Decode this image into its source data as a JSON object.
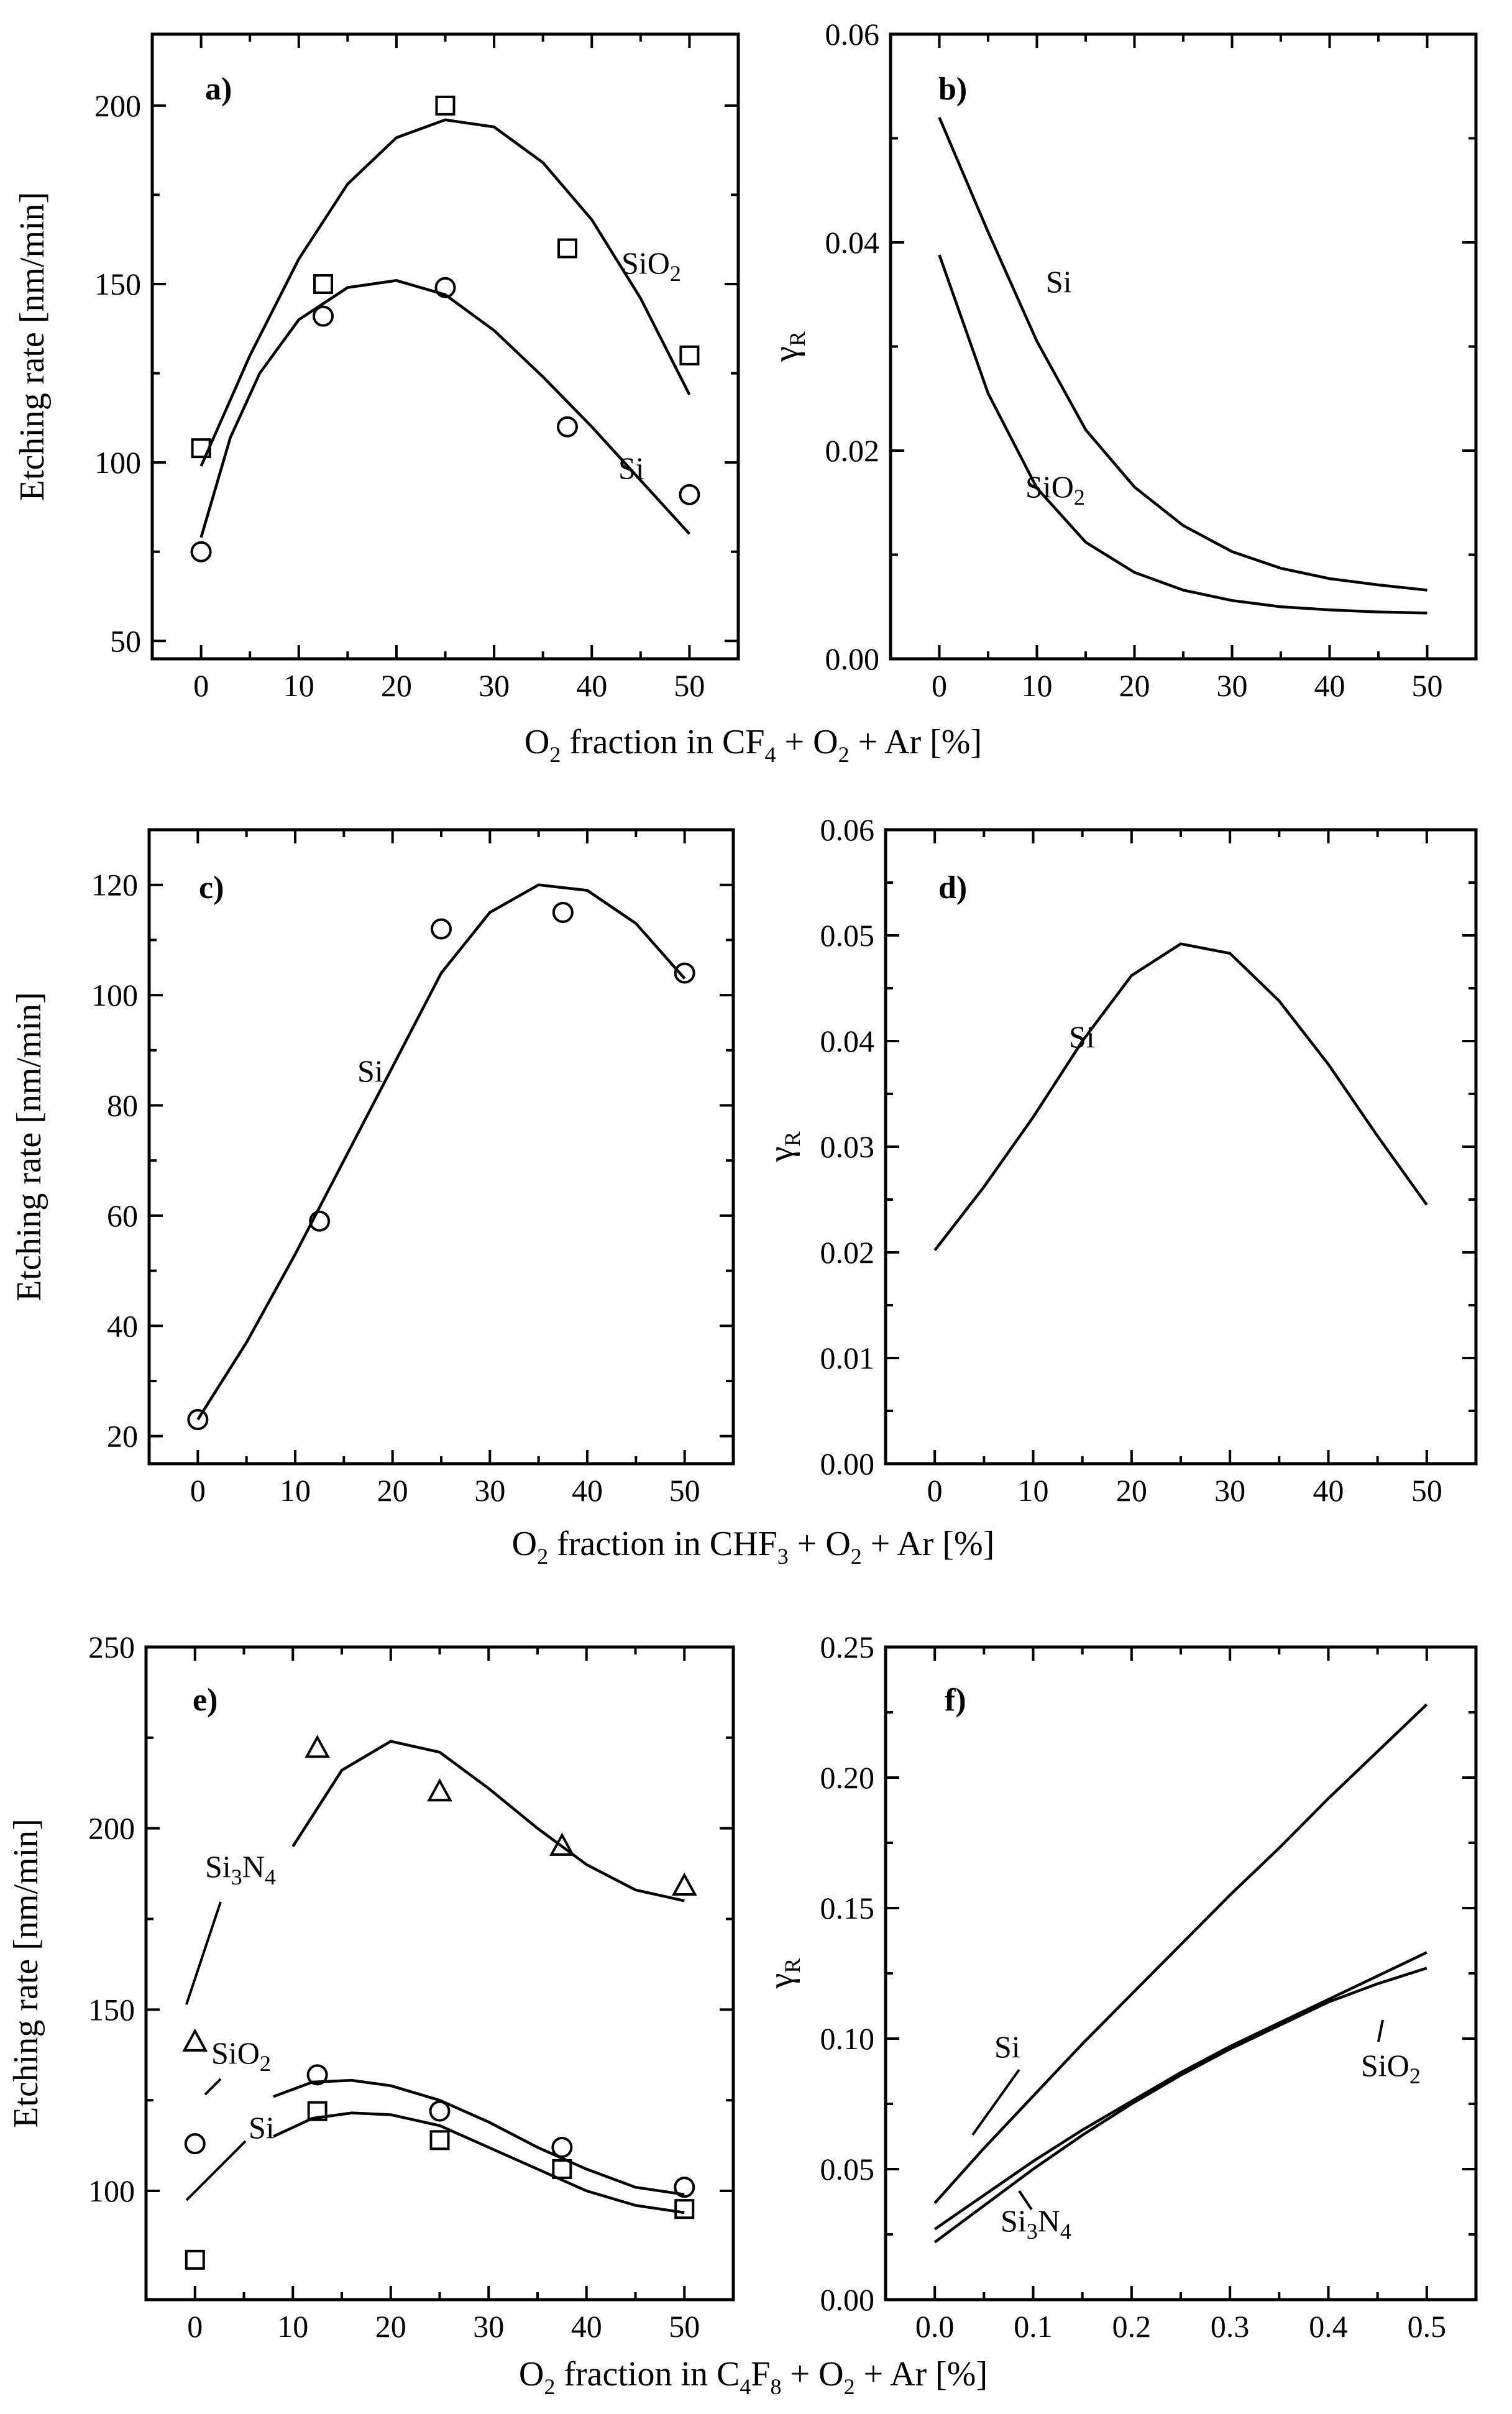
{
  "chart_data": [
    {
      "id": "a",
      "type": "scatter",
      "panel_label": "a)",
      "ylabel": "Etching rate [nm/min]",
      "xlim": [
        -5,
        55
      ],
      "ylim": [
        45,
        220
      ],
      "xticks": [
        "0",
        "10",
        "20",
        "30",
        "40",
        "50"
      ],
      "yticks": [
        "50",
        "100",
        "150",
        "200"
      ],
      "series": [
        {
          "name": "SiO2",
          "label_main": "SiO",
          "label_sub": "2",
          "marker": "square",
          "points": [
            [
              0,
              104
            ],
            [
              12.5,
              150
            ],
            [
              25,
              200
            ],
            [
              37.5,
              160
            ],
            [
              50,
              130
            ]
          ],
          "fit": [
            [
              0,
              99
            ],
            [
              5,
              130
            ],
            [
              10,
              157
            ],
            [
              15,
              178
            ],
            [
              20,
              191
            ],
            [
              25,
              196
            ],
            [
              30,
              194
            ],
            [
              35,
              184
            ],
            [
              40,
              168
            ],
            [
              45,
              146
            ],
            [
              50,
              119
            ]
          ]
        },
        {
          "name": "Si",
          "label_main": "Si",
          "label_sub": "",
          "marker": "circle",
          "points": [
            [
              0,
              75
            ],
            [
              12.5,
              141
            ],
            [
              25,
              149
            ],
            [
              37.5,
              110
            ],
            [
              50,
              91
            ]
          ],
          "fit": [
            [
              0,
              79
            ],
            [
              3,
              107
            ],
            [
              6,
              125
            ],
            [
              10,
              140
            ],
            [
              15,
              149
            ],
            [
              20,
              151
            ],
            [
              25,
              147
            ],
            [
              30,
              137
            ],
            [
              35,
              124
            ],
            [
              40,
              110
            ],
            [
              45,
              95
            ],
            [
              50,
              80
            ]
          ]
        }
      ]
    },
    {
      "id": "b",
      "type": "line",
      "panel_label": "b)",
      "ylabel_main": "γ",
      "ylabel_sub": "R",
      "xlim": [
        -5,
        55
      ],
      "ylim": [
        0,
        0.06
      ],
      "xticks": [
        "0",
        "10",
        "20",
        "30",
        "40",
        "50"
      ],
      "yticks": [
        "0.00",
        "0.02",
        "0.04",
        "0.06"
      ],
      "series": [
        {
          "name": "Si",
          "label_main": "Si",
          "label_sub": "",
          "fit": [
            [
              0,
              0.052
            ],
            [
              5,
              0.041
            ],
            [
              10,
              0.0305
            ],
            [
              15,
              0.022
            ],
            [
              20,
              0.0165
            ],
            [
              25,
              0.0128
            ],
            [
              30,
              0.0103
            ],
            [
              35,
              0.0087
            ],
            [
              40,
              0.0077
            ],
            [
              45,
              0.0071
            ],
            [
              50,
              0.0066
            ]
          ]
        },
        {
          "name": "SiO2",
          "label_main": "SiO",
          "label_sub": "2",
          "fit": [
            [
              0,
              0.0388
            ],
            [
              5,
              0.0255
            ],
            [
              10,
              0.0164
            ],
            [
              15,
              0.0112
            ],
            [
              20,
              0.0083
            ],
            [
              25,
              0.0066
            ],
            [
              30,
              0.0056
            ],
            [
              35,
              0.005
            ],
            [
              40,
              0.0047
            ],
            [
              45,
              0.0045
            ],
            [
              50,
              0.0044
            ]
          ]
        }
      ]
    },
    {
      "id": "c",
      "type": "scatter",
      "panel_label": "c)",
      "ylabel": "Etching rate [nm/min]",
      "xlim": [
        -5,
        55
      ],
      "ylim": [
        15,
        130
      ],
      "xticks": [
        "0",
        "10",
        "20",
        "30",
        "40",
        "50"
      ],
      "yticks": [
        "20",
        "40",
        "60",
        "80",
        "100",
        "120"
      ],
      "series": [
        {
          "name": "Si",
          "label_main": "Si",
          "label_sub": "",
          "marker": "circle",
          "points": [
            [
              0,
              23
            ],
            [
              12.5,
              59
            ],
            [
              25,
              112
            ],
            [
              37.5,
              115
            ],
            [
              50,
              104
            ]
          ],
          "fit": [
            [
              0,
              23
            ],
            [
              5,
              37
            ],
            [
              10,
              53
            ],
            [
              15,
              70
            ],
            [
              20,
              87
            ],
            [
              25,
              104
            ],
            [
              30,
              115
            ],
            [
              35,
              120
            ],
            [
              40,
              119
            ],
            [
              45,
              113
            ],
            [
              48,
              107
            ],
            [
              50,
              103
            ]
          ]
        }
      ]
    },
    {
      "id": "d",
      "type": "line",
      "panel_label": "d)",
      "ylabel_main": "γ",
      "ylabel_sub": "R",
      "xlim": [
        -5,
        55
      ],
      "ylim": [
        0,
        0.06
      ],
      "xticks": [
        "0",
        "10",
        "20",
        "30",
        "40",
        "50"
      ],
      "yticks": [
        "0.00",
        "0.01",
        "0.02",
        "0.03",
        "0.04",
        "0.05",
        "0.06"
      ],
      "series": [
        {
          "name": "Si",
          "label_main": "Si",
          "label_sub": "",
          "fit": [
            [
              0,
              0.0202
            ],
            [
              5,
              0.0262
            ],
            [
              10,
              0.0328
            ],
            [
              15,
              0.04
            ],
            [
              20,
              0.0462
            ],
            [
              25,
              0.0492
            ],
            [
              30,
              0.0483
            ],
            [
              35,
              0.0438
            ],
            [
              40,
              0.0378
            ],
            [
              45,
              0.031
            ],
            [
              50,
              0.0245
            ]
          ]
        }
      ]
    },
    {
      "id": "e",
      "type": "scatter",
      "panel_label": "e)",
      "ylabel": "Etching rate [nm/min]",
      "xlim": [
        -5,
        55
      ],
      "ylim": [
        70,
        250
      ],
      "xticks": [
        "0",
        "10",
        "20",
        "30",
        "40",
        "50"
      ],
      "yticks": [
        "100",
        "150",
        "200",
        "250"
      ],
      "series": [
        {
          "name": "Si3N4",
          "label_main": "Si",
          "label_sub": "3",
          "label_main2": "N",
          "label_sub2": "4",
          "marker": "triangle",
          "points": [
            [
              0,
              141
            ],
            [
              12.5,
              222
            ],
            [
              25,
              210
            ],
            [
              37.5,
              195
            ],
            [
              50,
              184
            ]
          ],
          "fit": [
            [
              10,
              195
            ],
            [
              15,
              216
            ],
            [
              20,
              224
            ],
            [
              25,
              221
            ],
            [
              30,
              211
            ],
            [
              35,
              200
            ],
            [
              40,
              190
            ],
            [
              45,
              183
            ],
            [
              50,
              180
            ]
          ]
        },
        {
          "name": "SiO2",
          "label_main": "SiO",
          "label_sub": "2",
          "marker": "circle",
          "points": [
            [
              0,
              113
            ],
            [
              12.5,
              132
            ],
            [
              25,
              122
            ],
            [
              37.5,
              112
            ],
            [
              50,
              101
            ]
          ],
          "fit": [
            [
              8,
              126
            ],
            [
              12,
              130
            ],
            [
              16,
              130.5
            ],
            [
              20,
              129
            ],
            [
              25,
              125
            ],
            [
              30,
              119
            ],
            [
              35,
              112
            ],
            [
              40,
              106
            ],
            [
              45,
              101
            ],
            [
              50,
              99
            ]
          ]
        },
        {
          "name": "Si",
          "label_main": "Si",
          "label_sub": "",
          "marker": "square",
          "points": [
            [
              0,
              81
            ],
            [
              12.5,
              122
            ],
            [
              25,
              114
            ],
            [
              37.5,
              106
            ],
            [
              50,
              95
            ]
          ],
          "fit": [
            [
              8,
              115
            ],
            [
              12,
              120
            ],
            [
              16,
              121.5
            ],
            [
              20,
              121
            ],
            [
              25,
              118
            ],
            [
              30,
              112
            ],
            [
              35,
              106
            ],
            [
              40,
              100
            ],
            [
              45,
              96
            ],
            [
              50,
              94
            ]
          ]
        }
      ]
    },
    {
      "id": "f",
      "type": "line",
      "panel_label": "f)",
      "ylabel_main": "γ",
      "ylabel_sub": "R",
      "xlim": [
        -0.05,
        0.55
      ],
      "ylim": [
        0,
        0.25
      ],
      "xticks": [
        "0.0",
        "0.1",
        "0.2",
        "0.3",
        "0.4",
        "0.5"
      ],
      "yticks": [
        "0.00",
        "0.05",
        "0.10",
        "0.15",
        "0.20",
        "0.25"
      ],
      "series": [
        {
          "name": "Si",
          "label_main": "Si",
          "label_sub": "",
          "fit": [
            [
              0,
              0.037
            ],
            [
              0.05,
              0.058
            ],
            [
              0.1,
              0.078
            ],
            [
              0.15,
              0.098
            ],
            [
              0.2,
              0.117
            ],
            [
              0.25,
              0.136
            ],
            [
              0.3,
              0.155
            ],
            [
              0.35,
              0.173
            ],
            [
              0.4,
              0.192
            ],
            [
              0.45,
              0.21
            ],
            [
              0.5,
              0.228
            ]
          ]
        },
        {
          "name": "SiO2",
          "label_main": "SiO",
          "label_sub": "2",
          "fit": [
            [
              0,
              0.027
            ],
            [
              0.05,
              0.04
            ],
            [
              0.1,
              0.053
            ],
            [
              0.15,
              0.065
            ],
            [
              0.2,
              0.076
            ],
            [
              0.25,
              0.087
            ],
            [
              0.3,
              0.097
            ],
            [
              0.35,
              0.106
            ],
            [
              0.4,
              0.115
            ],
            [
              0.45,
              0.124
            ],
            [
              0.5,
              0.133
            ]
          ]
        },
        {
          "name": "Si3N4",
          "label_main": "Si",
          "label_sub": "3",
          "label_main2": "N",
          "label_sub2": "4",
          "fit": [
            [
              0,
              0.022
            ],
            [
              0.05,
              0.036
            ],
            [
              0.1,
              0.05
            ],
            [
              0.15,
              0.063
            ],
            [
              0.2,
              0.075
            ],
            [
              0.25,
              0.086
            ],
            [
              0.3,
              0.096
            ],
            [
              0.35,
              0.105
            ],
            [
              0.4,
              0.114
            ],
            [
              0.45,
              0.121
            ],
            [
              0.5,
              0.127
            ]
          ]
        }
      ]
    }
  ],
  "xlabels": {
    "top": {
      "p1": "O",
      "s1": "2",
      "p2": " fraction in CF",
      "s2": "4",
      "p3": " + O",
      "s3": "2",
      "p4": " + Ar [%]"
    },
    "middle": {
      "p1": "O",
      "s1": "2",
      "p2": " fraction in CHF",
      "s2": "3",
      "p3": " + O",
      "s3": "2",
      "p4": " + Ar [%]"
    },
    "bottom": {
      "p1": "O",
      "s1": "2",
      "p2": " fraction in C",
      "s2": "4",
      "p2b": "F",
      "s2b": "8",
      "p3": " + O",
      "s3": "2",
      "p4": " + Ar [%]"
    }
  }
}
